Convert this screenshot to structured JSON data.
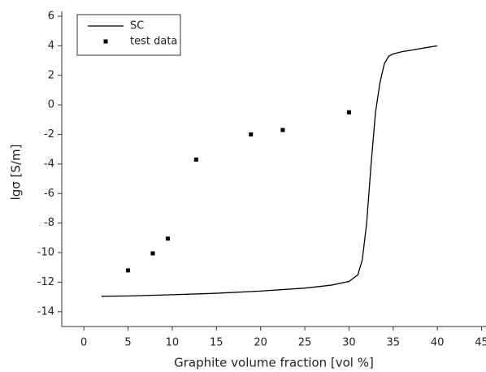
{
  "chart_data": {
    "type": "line",
    "xlabel": "Graphite volume fraction [vol %]",
    "ylabel": "lgσ [S/m]",
    "xlim": [
      -2.5,
      45.5
    ],
    "ylim": [
      -15,
      6
    ],
    "xticks": [
      0,
      5,
      10,
      15,
      20,
      25,
      30,
      35,
      40,
      45
    ],
    "yticks": [
      6,
      4,
      2,
      0,
      -2,
      -4,
      -6,
      -8,
      -10,
      -12,
      -14
    ],
    "legend": "upper left",
    "series": [
      {
        "name": "SC",
        "type": "line",
        "color": "#000000",
        "x": [
          2,
          5,
          10,
          15,
          20,
          25,
          28,
          30,
          31,
          31.5,
          32,
          32.5,
          33,
          33.5,
          34,
          34.5,
          35,
          36,
          37,
          38,
          39,
          40
        ],
        "values": [
          -12.95,
          -12.93,
          -12.85,
          -12.75,
          -12.6,
          -12.4,
          -12.2,
          -11.95,
          -11.5,
          -10.5,
          -8,
          -4,
          -0.5,
          1.5,
          2.8,
          3.3,
          3.45,
          3.6,
          3.7,
          3.8,
          3.9,
          4.0
        ]
      },
      {
        "name": "test data",
        "type": "scatter",
        "color": "#000000",
        "x": [
          5,
          7.8,
          9.5,
          12.7,
          18.9,
          22.5,
          30
        ],
        "values": [
          -11.2,
          -10.05,
          -9.05,
          -3.7,
          -2,
          -1.7,
          -0.5
        ]
      }
    ]
  }
}
